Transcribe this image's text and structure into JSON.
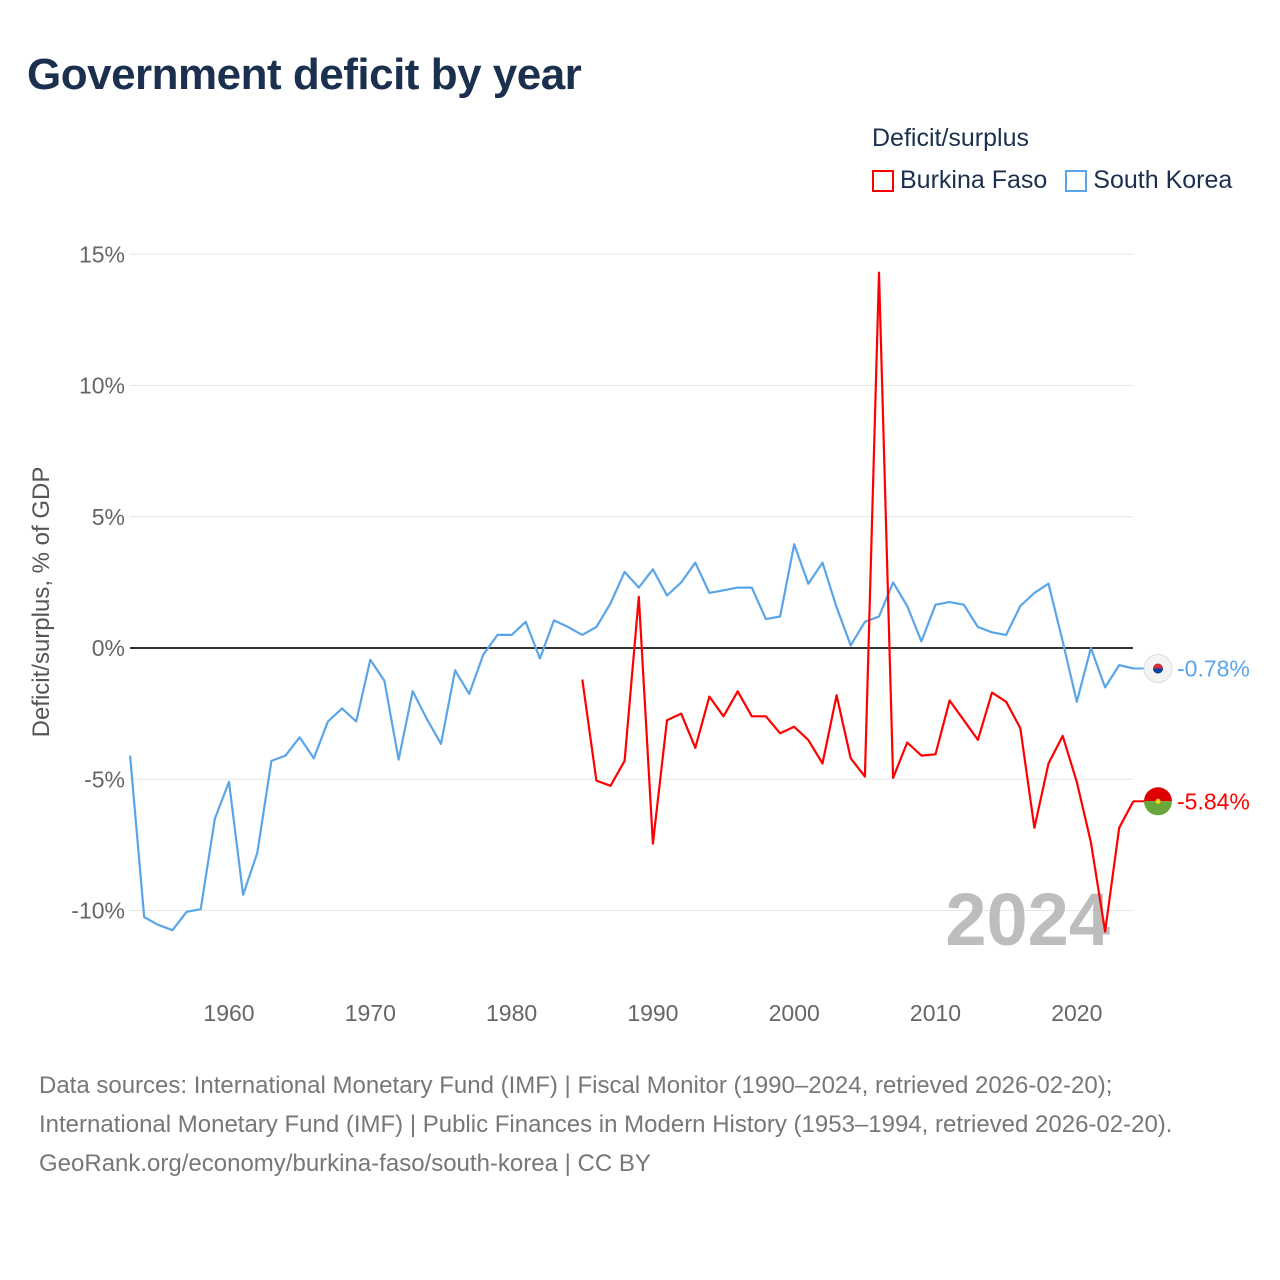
{
  "title": "Government deficit by year",
  "legend": {
    "title": "Deficit/surplus",
    "items": [
      "Burkina Faso",
      "South Korea"
    ]
  },
  "year_watermark": "2024",
  "source": {
    "line1": "Data sources: International Monetary Fund (IMF) | Fiscal Monitor (1990–2024, retrieved 2026-02-20); International Monetary Fund (IMF) | Public Finances in Modern History (1953–1994, retrieved 2026-02-20).",
    "line2": "GeoRank.org/economy/burkina-faso/south-korea | CC BY"
  },
  "chart_data": {
    "type": "line",
    "title": "Government deficit by year",
    "xlabel": "",
    "ylabel": "Deficit/surplus, % of GDP",
    "xlim": [
      1953,
      2024
    ],
    "ylim": [
      -12.5,
      15.5
    ],
    "yticks": [
      15,
      10,
      5,
      0,
      -5,
      -10
    ],
    "ytick_labels": [
      "15%",
      "10%",
      "5%",
      "0%",
      "-5%",
      "-10%"
    ],
    "xticks": [
      1960,
      1970,
      1980,
      1990,
      2000,
      2010,
      2020
    ],
    "xtick_labels": [
      "1960",
      "1970",
      "1980",
      "1990",
      "2000",
      "2010",
      "2020"
    ],
    "grid": true,
    "legend_position": "top-right",
    "series": [
      {
        "name": "South Korea",
        "color": "#5aa5e8",
        "end_label": "-0.78%",
        "start_year": 1953,
        "values": [
          -4.1,
          -10.25,
          -10.55,
          -10.75,
          -10.05,
          -9.95,
          -6.5,
          -5.1,
          -9.4,
          -7.8,
          -4.3,
          -4.1,
          -3.4,
          -4.2,
          -2.8,
          -2.3,
          -2.8,
          -0.45,
          -1.25,
          -4.25,
          -1.65,
          -2.7,
          -3.65,
          -0.85,
          -1.75,
          -0.25,
          0.5,
          0.5,
          1.0,
          -0.4,
          1.05,
          0.8,
          0.5,
          0.8,
          1.7,
          2.9,
          2.3,
          3.0,
          2.0,
          2.5,
          3.25,
          2.1,
          2.2,
          2.3,
          2.3,
          1.1,
          1.2,
          3.95,
          2.45,
          3.25,
          1.55,
          0.1,
          1.0,
          1.2,
          2.5,
          1.6,
          0.25,
          1.65,
          1.75,
          1.65,
          0.8,
          0.6,
          0.5,
          1.6,
          2.1,
          2.45,
          0.25,
          -2.05,
          0.0,
          -1.5,
          -0.65,
          -0.78
        ]
      },
      {
        "name": "Burkina Faso",
        "color": "#ff0000",
        "end_label": "-5.84%",
        "start_year": 1985,
        "values": [
          -1.2,
          -5.05,
          -5.25,
          -4.3,
          1.95,
          -7.45,
          -2.75,
          -2.5,
          -3.8,
          -1.85,
          -2.6,
          -1.65,
          -2.6,
          -2.6,
          -3.25,
          -3.0,
          -3.5,
          -4.4,
          -1.8,
          -4.2,
          -4.9,
          14.3,
          -4.95,
          -3.6,
          -4.1,
          -4.05,
          -2.0,
          -2.75,
          -3.5,
          -1.7,
          -2.05,
          -3.05,
          -6.85,
          -4.4,
          -3.35,
          -5.1,
          -7.4,
          -10.8,
          -6.85,
          -5.84
        ]
      }
    ]
  }
}
